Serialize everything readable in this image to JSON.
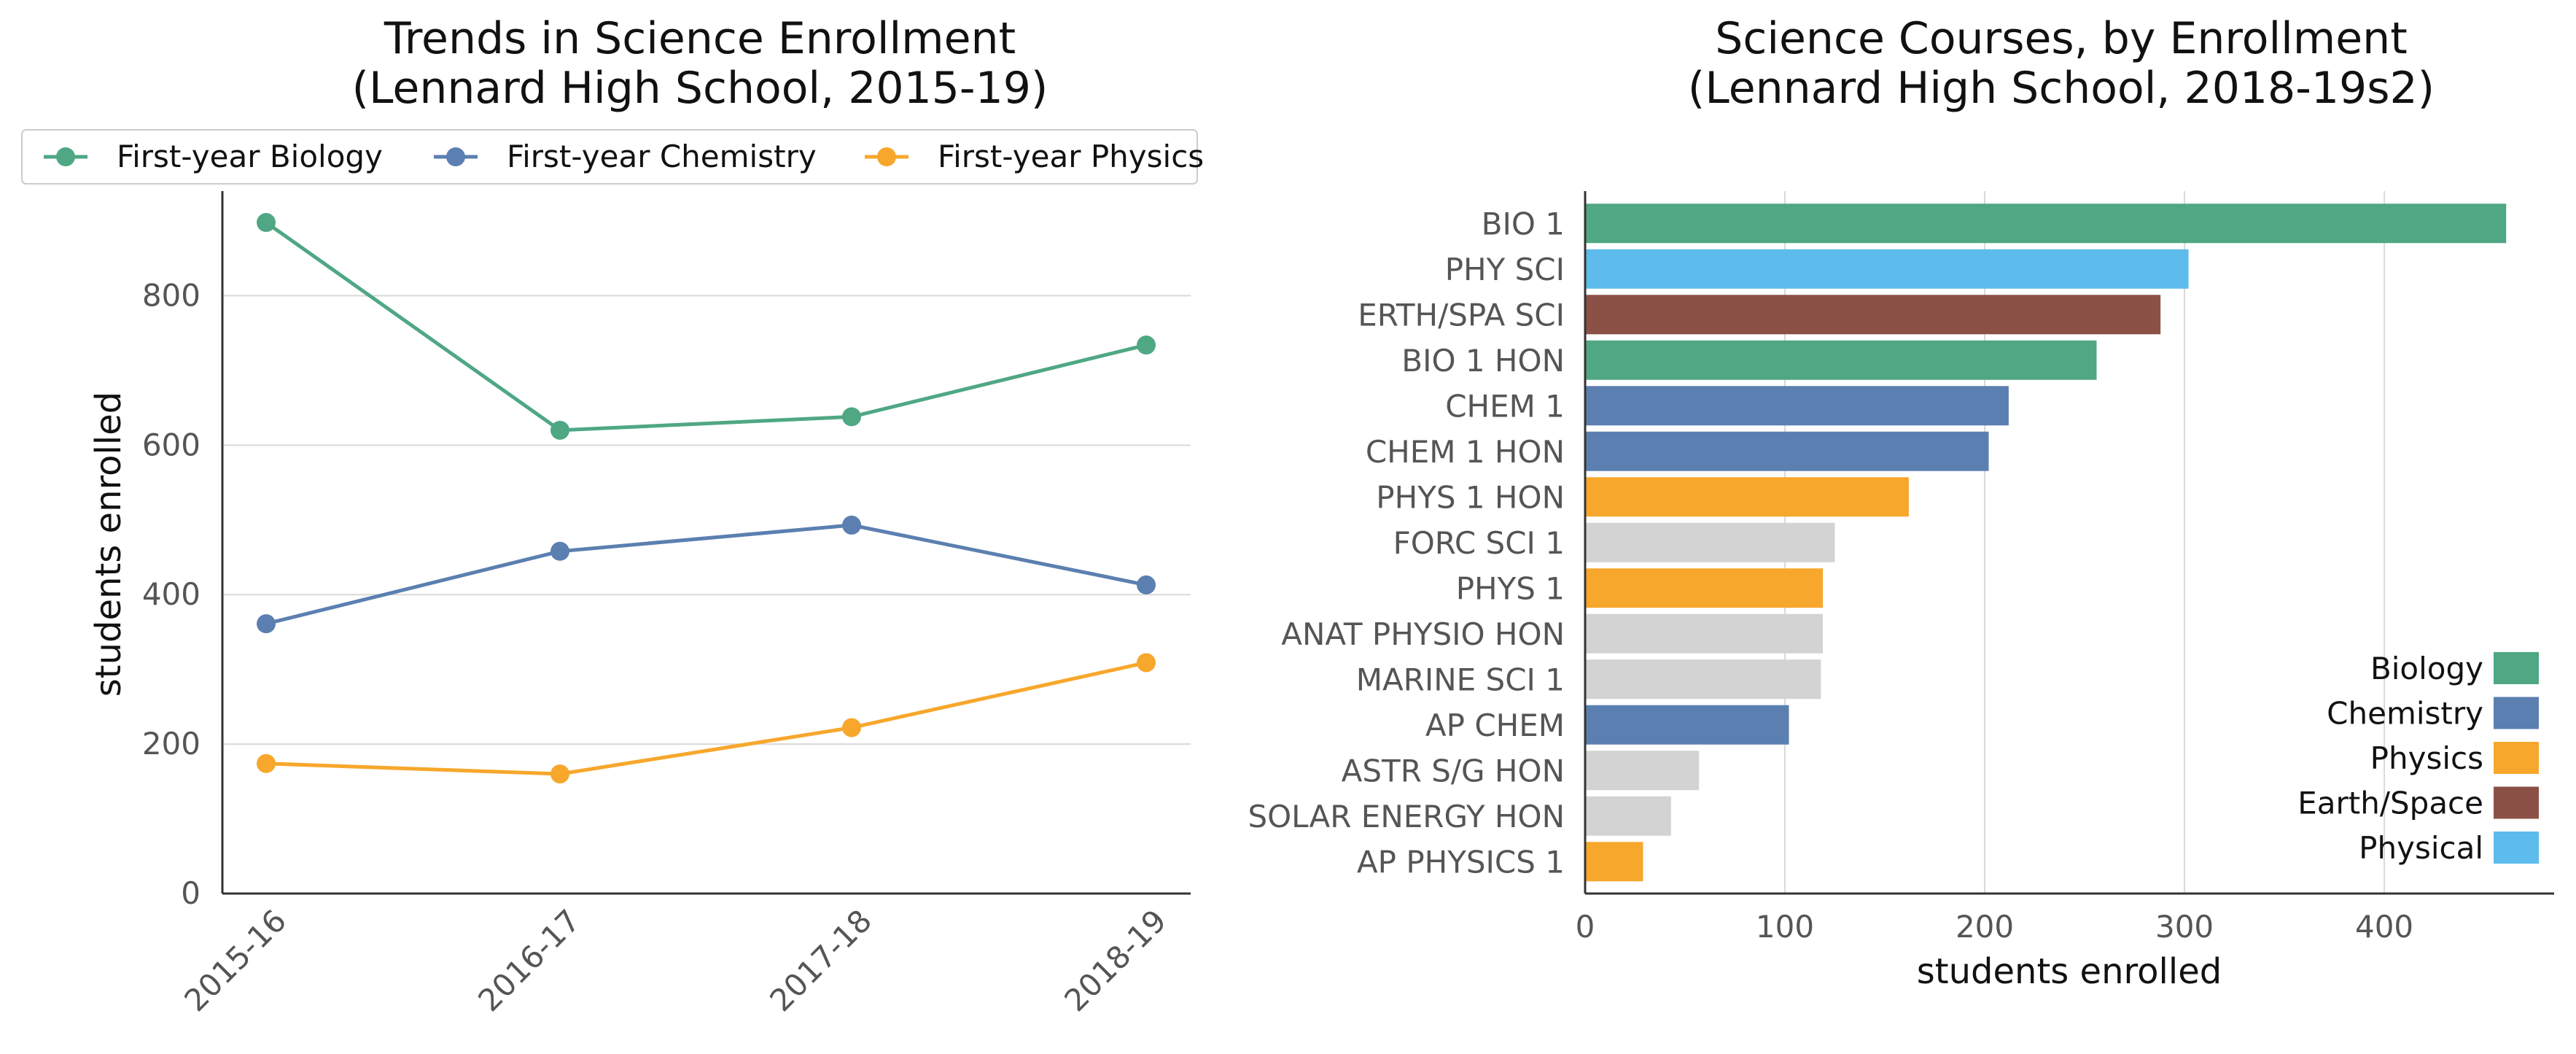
{
  "chart_data": [
    {
      "type": "line",
      "title_line1": "Trends in Science Enrollment",
      "title_line2": "(Lennard High School, 2015-19)",
      "xlabel": "",
      "ylabel": "students enrolled",
      "ylim": [
        0,
        940
      ],
      "yticks": [
        0,
        200,
        400,
        600,
        800
      ],
      "grid": "horizontal",
      "legend_position": "top",
      "categories": [
        "2015-16",
        "2016-17",
        "2017-18",
        "2018-19"
      ],
      "series": [
        {
          "name": "First-year Biology",
          "color": "#4fa784",
          "values": [
            898,
            620,
            638,
            734
          ]
        },
        {
          "name": "First-year Chemistry",
          "color": "#5b7fb0",
          "values": [
            361,
            458,
            493,
            413
          ]
        },
        {
          "name": "First-year Physics",
          "color": "#f7a72c",
          "values": [
            174,
            160,
            222,
            309
          ]
        }
      ]
    },
    {
      "type": "bar",
      "orientation": "horizontal",
      "title_line1": "Science Courses, by Enrollment",
      "title_line2": "(Lennard High School, 2018-19s2)",
      "xlabel": "students enrolled",
      "ylabel": "",
      "xlim": [
        0,
        485
      ],
      "xticks": [
        0,
        100,
        200,
        300,
        400
      ],
      "grid": "vertical",
      "legend_position": "lower-right",
      "categories": [
        "BIO 1",
        "PHY SCI",
        "ERTH/SPA SCI",
        "BIO 1 HON",
        "CHEM 1",
        "CHEM 1 HON",
        "PHYS 1 HON",
        "FORC SCI 1",
        "PHYS 1",
        "ANAT PHYSIO HON",
        "MARINE SCI 1",
        "AP CHEM",
        "ASTR S/G HON",
        "SOLAR ENERGY HON",
        "AP PHYSICS 1"
      ],
      "values": [
        461,
        302,
        288,
        256,
        212,
        202,
        162,
        125,
        119,
        119,
        118,
        102,
        57,
        43,
        29
      ],
      "groups": [
        "Biology",
        "Physical",
        "Earth/Space",
        "Biology",
        "Chemistry",
        "Chemistry",
        "Physics",
        "Other",
        "Physics",
        "Other",
        "Other",
        "Chemistry",
        "Other",
        "Other",
        "Physics"
      ],
      "legend": [
        {
          "name": "Biology",
          "color": "#4fa784"
        },
        {
          "name": "Chemistry",
          "color": "#5b7fb0"
        },
        {
          "name": "Physics",
          "color": "#f7a72c"
        },
        {
          "name": "Earth/Space",
          "color": "#8b5146"
        },
        {
          "name": "Physical",
          "color": "#5dbcec"
        }
      ],
      "other_color": "#d3d3d3"
    }
  ]
}
